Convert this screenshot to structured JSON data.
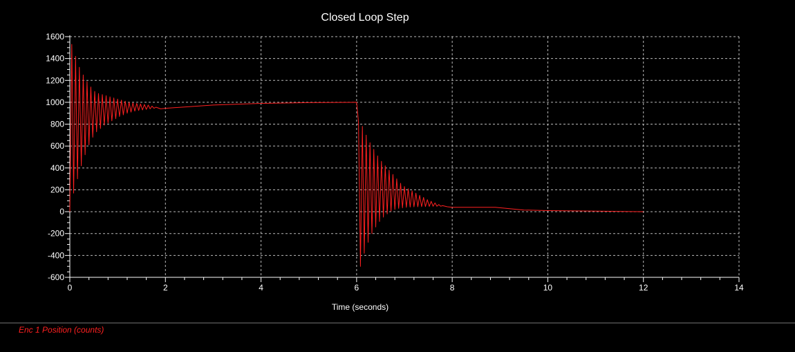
{
  "chart_data": {
    "type": "line",
    "title": "Closed Loop Step",
    "xlabel": "Time (seconds)",
    "ylabel": "",
    "xlim": [
      0,
      14
    ],
    "ylim": [
      -600,
      1600
    ],
    "xticks": [
      0,
      2,
      4,
      6,
      8,
      10,
      12,
      14
    ],
    "yticks": [
      -600,
      -400,
      -200,
      0,
      200,
      400,
      600,
      800,
      1000,
      1200,
      1400,
      1600
    ],
    "grid": true,
    "legend_position": "bottom-left",
    "background_color": "#000000",
    "text_color": "#ffffff",
    "grid_color": "#bbbbbb",
    "series": [
      {
        "name": "Enc 1 Position (counts)",
        "color": "#ff2020",
        "x": [
          0,
          0.04,
          0.08,
          0.12,
          0.16,
          0.2,
          0.24,
          0.28,
          0.32,
          0.36,
          0.4,
          0.44,
          0.48,
          0.52,
          0.56,
          0.6,
          0.64,
          0.68,
          0.72,
          0.76,
          0.8,
          0.84,
          0.88,
          0.92,
          0.96,
          1.0,
          1.04,
          1.08,
          1.12,
          1.16,
          1.2,
          1.24,
          1.28,
          1.32,
          1.36,
          1.4,
          1.44,
          1.48,
          1.52,
          1.56,
          1.6,
          1.64,
          1.68,
          1.72,
          1.76,
          1.8,
          1.9,
          2.0,
          3.0,
          4.0,
          5.0,
          6.0,
          6.04,
          6.08,
          6.12,
          6.16,
          6.2,
          6.24,
          6.28,
          6.32,
          6.36,
          6.4,
          6.44,
          6.48,
          6.52,
          6.56,
          6.6,
          6.64,
          6.68,
          6.72,
          6.76,
          6.8,
          6.84,
          6.88,
          6.92,
          6.96,
          7.0,
          7.04,
          7.08,
          7.12,
          7.16,
          7.2,
          7.24,
          7.28,
          7.32,
          7.36,
          7.4,
          7.44,
          7.48,
          7.52,
          7.56,
          7.6,
          7.64,
          7.68,
          7.72,
          7.76,
          7.8,
          7.9,
          8.0,
          8.9,
          9.5,
          10.0,
          11.0,
          12.0
        ],
        "y": [
          0,
          1530,
          170,
          1420,
          300,
          1320,
          420,
          1250,
          520,
          1190,
          610,
          1140,
          680,
          1100,
          730,
          1080,
          760,
          1070,
          790,
          1060,
          810,
          1050,
          830,
          1040,
          850,
          1030,
          870,
          1020,
          885,
          1010,
          900,
          1000,
          910,
          995,
          920,
          990,
          925,
          985,
          930,
          980,
          935,
          975,
          940,
          965,
          945,
          955,
          940,
          945,
          975,
          990,
          997,
          1000,
          820,
          -500,
          780,
          -380,
          700,
          -280,
          630,
          -200,
          570,
          -140,
          510,
          -90,
          460,
          -50,
          420,
          -20,
          380,
          5,
          340,
          20,
          300,
          30,
          260,
          35,
          230,
          40,
          210,
          42,
          190,
          44,
          170,
          45,
          150,
          46,
          130,
          47,
          110,
          48,
          95,
          49,
          80,
          50,
          65,
          50,
          55,
          45,
          40,
          40,
          15,
          10,
          5,
          0
        ]
      }
    ]
  }
}
